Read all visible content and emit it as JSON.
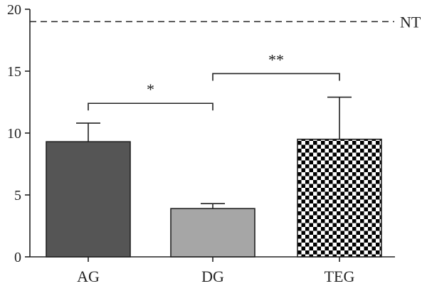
{
  "chart_data": {
    "type": "bar",
    "categories": [
      "AG",
      "DG",
      "TEG"
    ],
    "values": [
      9.3,
      3.9,
      9.5
    ],
    "errors_upper": [
      10.8,
      4.3,
      12.9
    ],
    "ylim": [
      0,
      20
    ],
    "yticks": [
      0,
      5,
      10,
      15,
      20
    ],
    "ytick_labels": [
      "0",
      "5",
      "10",
      "15",
      "20"
    ],
    "title": "",
    "xlabel": "",
    "ylabel": "",
    "bar_fills": [
      "solid-dark",
      "solid-light",
      "checkerboard"
    ],
    "colors": {
      "AG": "#555555",
      "DG": "#a6a6a6",
      "TEG": "#000000"
    },
    "reference_line": {
      "value": 19,
      "label": "NT",
      "style": "dashed"
    },
    "significance": [
      {
        "from": "AG",
        "to": "DG",
        "label": "*",
        "y": 12.4
      },
      {
        "from": "DG",
        "to": "TEG",
        "label": "**",
        "y": 14.8
      }
    ]
  }
}
